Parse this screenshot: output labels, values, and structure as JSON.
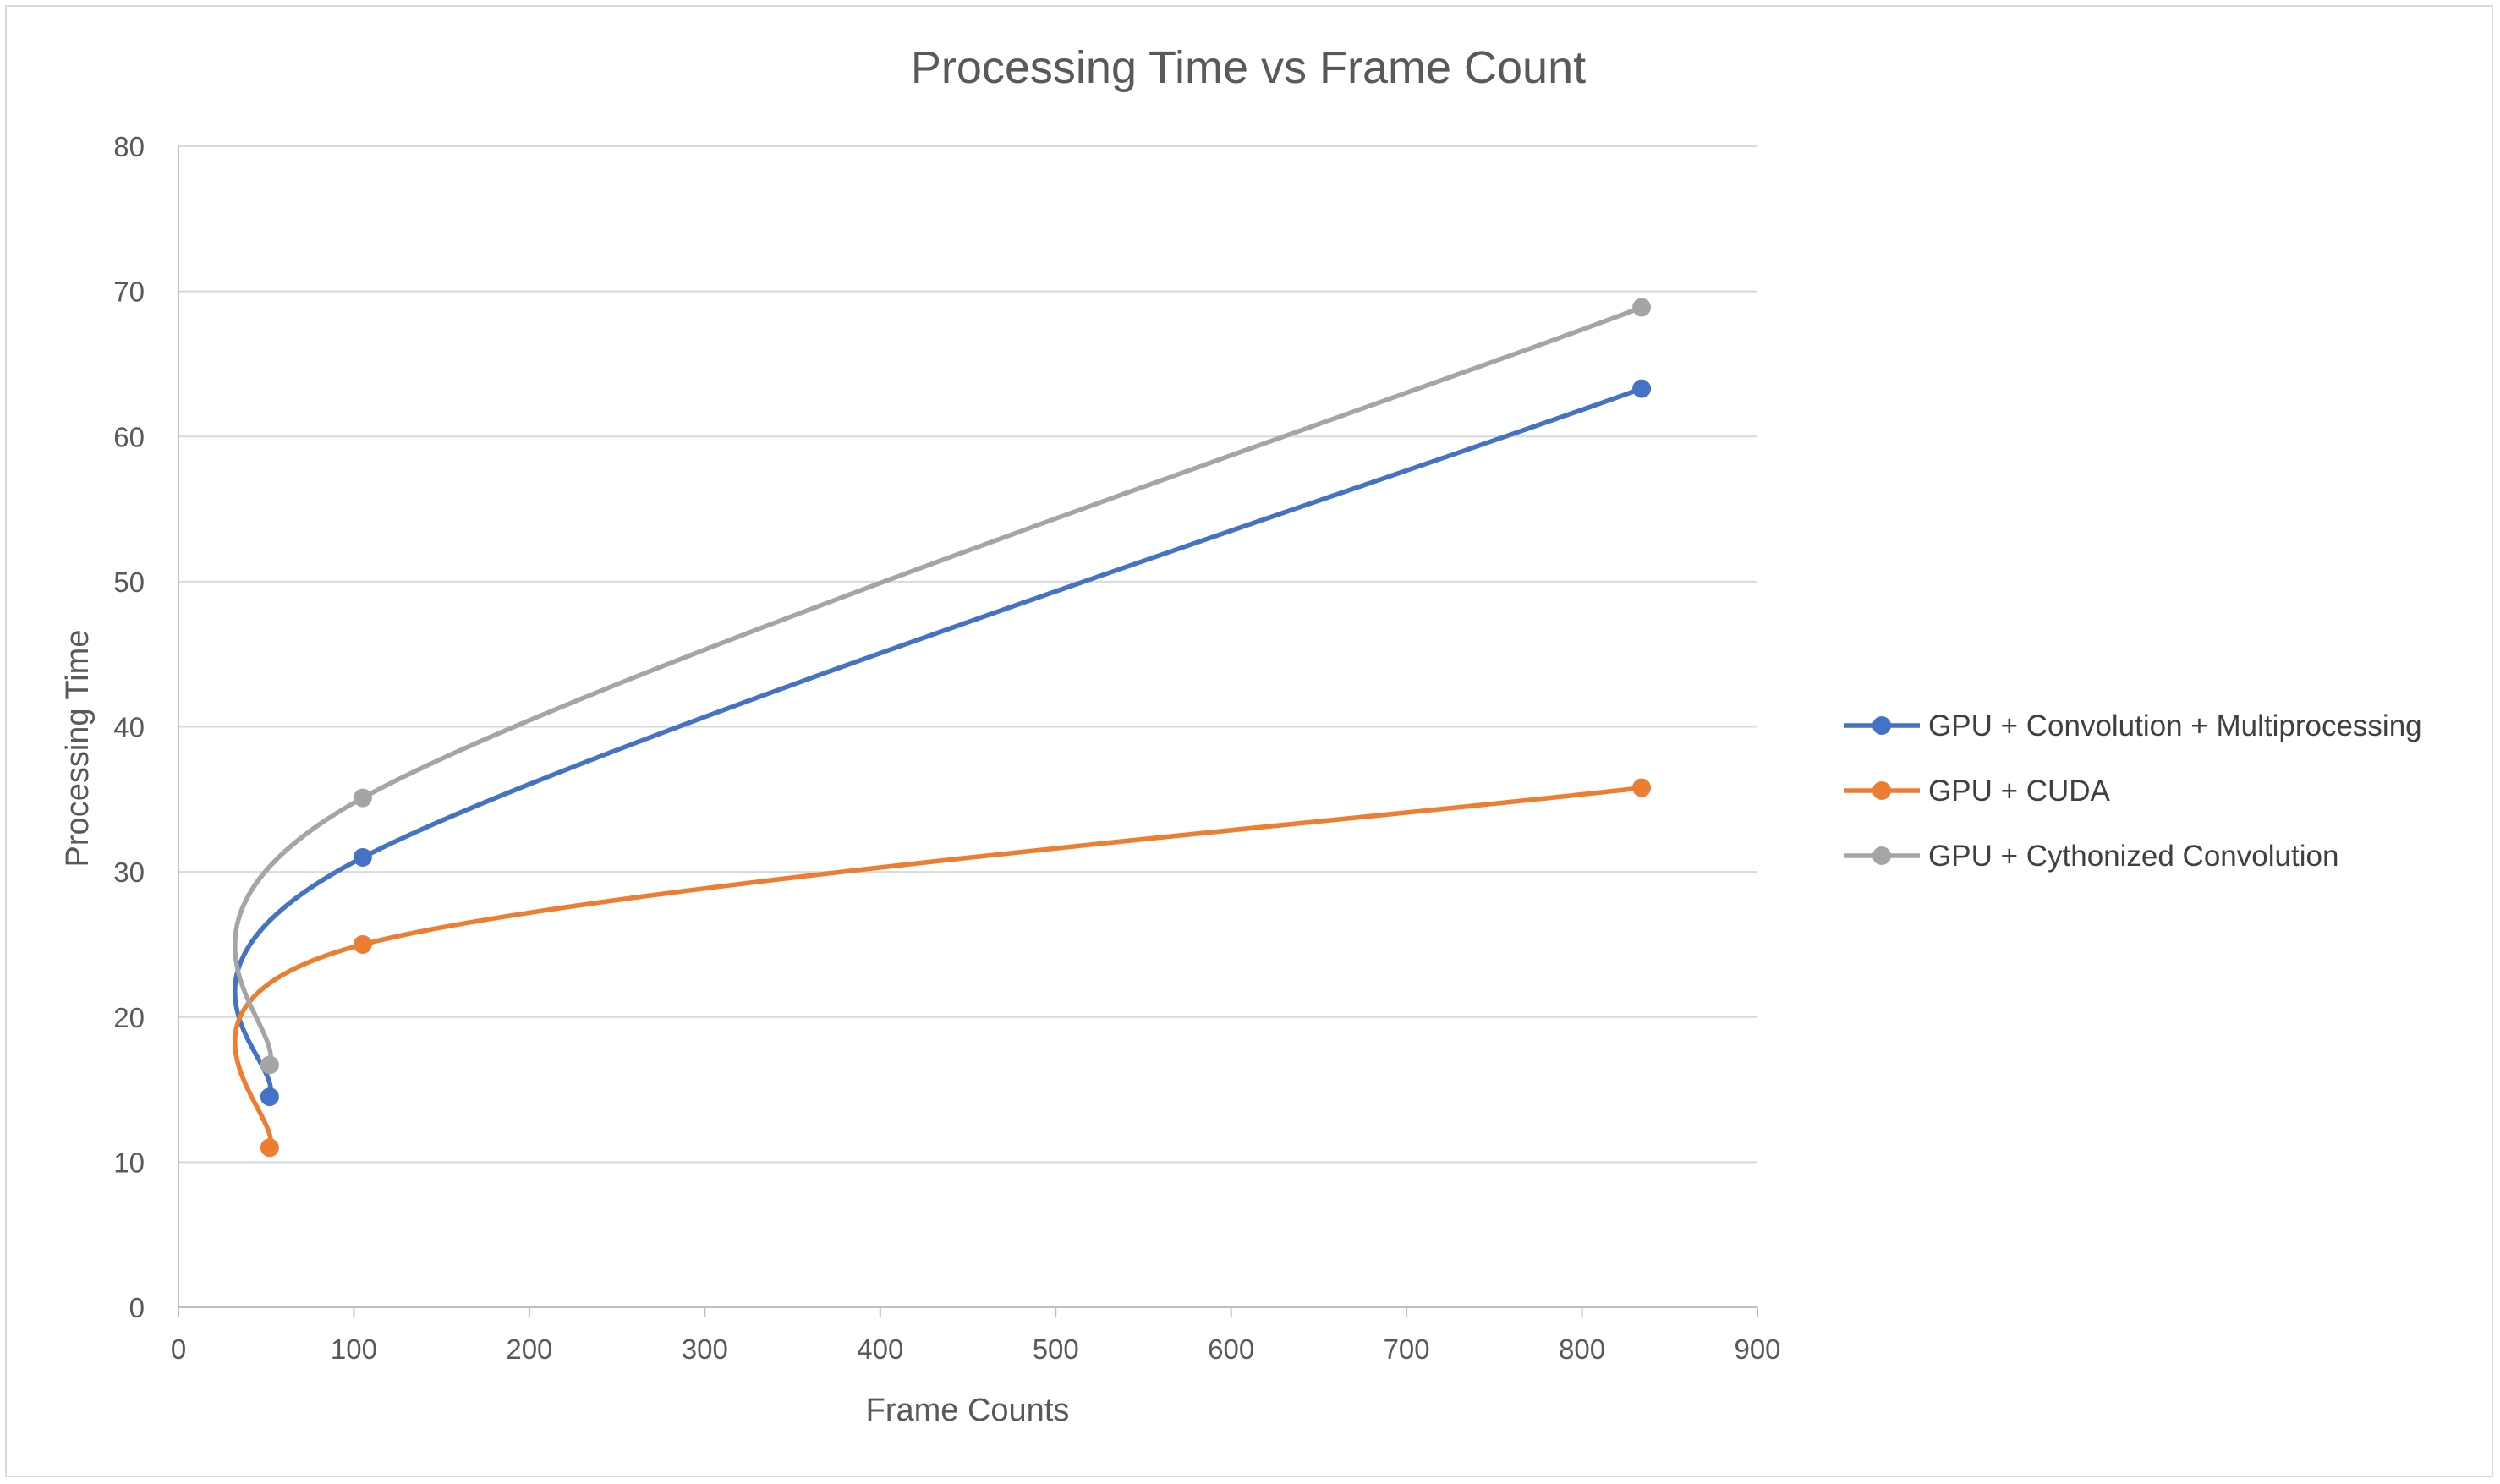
{
  "chart_data": {
    "type": "line",
    "title": "Processing Time vs Frame Count",
    "xlabel": "Frame Counts",
    "ylabel": "Processing Time",
    "xlim": [
      0,
      900
    ],
    "ylim": [
      0,
      80
    ],
    "x_ticks": [
      0,
      100,
      200,
      300,
      400,
      500,
      600,
      700,
      800,
      900
    ],
    "y_ticks": [
      0,
      10,
      20,
      30,
      40,
      50,
      60,
      70,
      80
    ],
    "grid": "horizontal",
    "legend_position": "right",
    "smooth_lines": true,
    "series": [
      {
        "name": "GPU + Convolution + Multiprocessing",
        "color": "#4472c4",
        "points": [
          [
            52,
            14.5
          ],
          [
            105,
            31.0
          ],
          [
            834,
            63.3
          ]
        ]
      },
      {
        "name": "GPU + CUDA",
        "color": "#ed7d31",
        "points": [
          [
            52,
            11.0
          ],
          [
            105,
            25.0
          ],
          [
            834,
            35.8
          ]
        ]
      },
      {
        "name": "GPU + Cythonized Convolution",
        "color": "#a5a5a5",
        "points": [
          [
            52,
            16.7
          ],
          [
            105,
            35.1
          ],
          [
            834,
            68.9
          ]
        ]
      }
    ]
  }
}
